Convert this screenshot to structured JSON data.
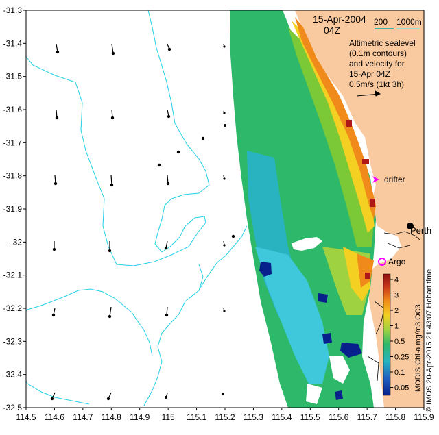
{
  "map": {
    "date_line1": "15-Apr-2004",
    "date_line2": "04Z",
    "isobath_scale": {
      "a": "200",
      "b": "1000m"
    },
    "legend_lines": [
      "Altimetric sealevel",
      "(0.1m contours)",
      "and velocity for",
      "15-Apr 04Z",
      "0.5m/s (1kt 3h)"
    ],
    "labels": {
      "drifter": "drifter",
      "perth": "Perth",
      "argo": "Argo"
    },
    "colorbar": {
      "ticks": [
        "4",
        "3",
        "2",
        "1",
        "0.5",
        "0.25",
        "0.1",
        "0.05"
      ],
      "caption": "MODIS Chl-a mg/m3 OC3"
    },
    "credit": "© IMOS 20-Apr-2015 21:43:07 Hobart time",
    "x_ticks": [
      "114.5",
      "114.6",
      "114.7",
      "114.8",
      "114.9",
      "115",
      "115.1",
      "115.2",
      "115.3",
      "115.4",
      "115.5",
      "115.6",
      "115.7",
      "115.8",
      "115.9"
    ],
    "y_ticks": [
      "-31.3",
      "-31.4",
      "-31.5",
      "-31.6",
      "-31.7",
      "-31.8",
      "-31.9",
      "-32",
      "-32.1",
      "-32.2",
      "-32.3",
      "-32.4",
      "-32.5"
    ],
    "colors": {
      "land": "#f9c9a0",
      "contour": "#22d0e6",
      "drifter_marker": "#ff00ff",
      "argo_marker": "#ff00ff"
    }
  }
}
